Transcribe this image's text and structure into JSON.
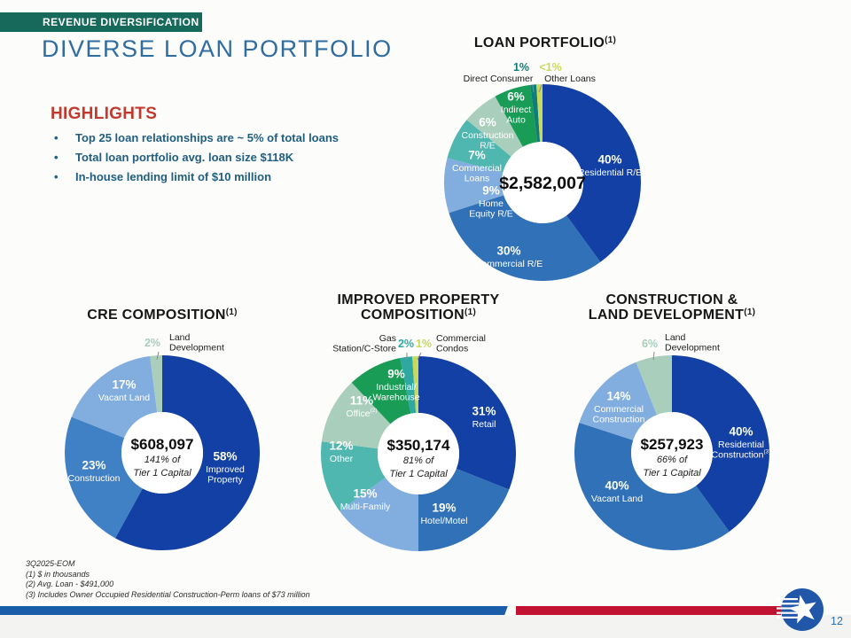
{
  "slide": {
    "banner": "REVENUE DIVERSIFICATION",
    "title": "DIVERSE LOAN PORTFOLIO",
    "page_number": "12",
    "footnotes": [
      "3Q2025-EOM",
      "(1) $ in thousands",
      "(2) Avg. Loan - $491,000",
      "(3) Includes Owner Occupied Residential Construction-Perm loans of $73 million"
    ]
  },
  "highlights": {
    "heading": "HIGHLIGHTS",
    "bullets": [
      "Top 25 loan relationships are ~ 5% of total loans",
      "Total loan portfolio avg. loan size $118K",
      "In-house lending limit of $10 million"
    ]
  },
  "colors": {
    "banner_green": "#17695B",
    "title_blue": "#2F6CA0",
    "highlight_red": "#C23A2E",
    "bullet_blue": "#1F5E80",
    "bar_blue": "#1A5DA8",
    "bar_red": "#C21231",
    "logo_blue": "#2057A8",
    "page_blue": "#2E6DA8",
    "footnote_gray": "#2B2B2B"
  },
  "chart_data": [
    {
      "type": "pie",
      "title_lines": [
        "LOAN PORTFOLIO"
      ],
      "title_sup": "(1)",
      "center_value": "$2,582,007",
      "center_sub_lines": [],
      "slices": [
        {
          "name": "Residential R/E",
          "pct": "40%",
          "value": 40,
          "color": "#1240A4",
          "name_lines": [
            "Residential R/E"
          ]
        },
        {
          "name": "Commercial R/E",
          "pct": "30%",
          "value": 30,
          "color": "#3071B8",
          "name_lines": [
            "Commercial R/E"
          ]
        },
        {
          "name": "Home Equity R/E",
          "pct": "9%",
          "value": 9,
          "color": "#81AEDF",
          "name_lines": [
            "Home",
            "Equity R/E"
          ]
        },
        {
          "name": "Commercial Loans",
          "pct": "7%",
          "value": 7,
          "color": "#4FB6B0",
          "name_lines": [
            "Commercial",
            "Loans"
          ]
        },
        {
          "name": "Construction R/E",
          "pct": "6%",
          "value": 6,
          "color": "#A9CFBC",
          "name_lines": [
            "Construction",
            "R/E"
          ]
        },
        {
          "name": "Indirect Auto",
          "pct": "6%",
          "value": 6,
          "color": "#199C55",
          "name_lines": [
            "Indirect",
            "Auto"
          ]
        },
        {
          "name": "Direct Consumer",
          "pct": "1%",
          "value": 1,
          "color": "#0E7E7A",
          "name_lines": [
            "Direct Consumer"
          ],
          "outside": true
        },
        {
          "name": "Other Loans",
          "pct": "<1%",
          "value": 1,
          "color": "#C9D95E",
          "name_lines": [
            "Other Loans"
          ],
          "outside": true
        }
      ]
    },
    {
      "type": "pie",
      "title_lines": [
        "CRE COMPOSITION"
      ],
      "title_sup": "(1)",
      "center_value": "$608,097",
      "center_sub_lines": [
        "141% of",
        "Tier 1 Capital"
      ],
      "slices": [
        {
          "name": "Improved Property",
          "pct": "58%",
          "value": 58,
          "color": "#1240A4",
          "name_lines": [
            "Improved",
            "Property"
          ]
        },
        {
          "name": "Construction",
          "pct": "23%",
          "value": 23,
          "color": "#4080C4",
          "name_lines": [
            "Construction"
          ]
        },
        {
          "name": "Vacant Land",
          "pct": "17%",
          "value": 17,
          "color": "#81AEDF",
          "name_lines": [
            "Vacant Land"
          ]
        },
        {
          "name": "Land Development",
          "pct": "2%",
          "value": 2,
          "color": "#A9CFBC",
          "name_lines": [
            "Land",
            "Development"
          ],
          "outside": true
        }
      ]
    },
    {
      "type": "pie",
      "title_lines": [
        "IMPROVED PROPERTY",
        "COMPOSITION"
      ],
      "title_sup": "(1)",
      "center_value": "$350,174",
      "center_sub_lines": [
        "81% of",
        "Tier 1 Capital"
      ],
      "slices": [
        {
          "name": "Retail",
          "pct": "31%",
          "value": 31,
          "color": "#1240A4",
          "name_lines": [
            "Retail"
          ]
        },
        {
          "name": "Hotel/Motel",
          "pct": "19%",
          "value": 19,
          "color": "#3071B8",
          "name_lines": [
            "Hotel/Motel"
          ]
        },
        {
          "name": "Multi-Family",
          "pct": "15%",
          "value": 15,
          "color": "#81AEDF",
          "name_lines": [
            "Multi-Family"
          ]
        },
        {
          "name": "Other",
          "pct": "12%",
          "value": 12,
          "color": "#4FB6B0",
          "name_lines": [
            "Other"
          ]
        },
        {
          "name": "Office",
          "pct": "11%",
          "value": 11,
          "color": "#A9CFBC",
          "name_lines": [
            "Office"
          ],
          "name_sup": "(2)"
        },
        {
          "name": "Industrial/Warehouse",
          "pct": "9%",
          "value": 9,
          "color": "#199C55",
          "name_lines": [
            "Industrial/",
            "Warehouse"
          ]
        },
        {
          "name": "Gas Station/C-Store",
          "pct": "2%",
          "value": 2,
          "color": "#2FA8A2",
          "name_lines": [
            "Gas",
            "Station/C-Store"
          ],
          "outside": true
        },
        {
          "name": "Commercial Condos",
          "pct": "1%",
          "value": 1,
          "color": "#C9D95E",
          "name_lines": [
            "Commercial",
            "Condos"
          ],
          "outside": true
        }
      ]
    },
    {
      "type": "pie",
      "title_lines": [
        "CONSTRUCTION &",
        "LAND DEVELOPMENT"
      ],
      "title_sup": "(1)",
      "center_value": "$257,923",
      "center_sub_lines": [
        "66% of",
        "Tier 1 Capital"
      ],
      "slices": [
        {
          "name": "Residential Construction",
          "pct": "40%",
          "value": 40,
          "color": "#1240A4",
          "name_lines": [
            "Residential",
            "Construction"
          ],
          "name_sup": "(3)"
        },
        {
          "name": "Vacant Land",
          "pct": "40%",
          "value": 40,
          "color": "#3071B8",
          "name_lines": [
            "Vacant Land"
          ]
        },
        {
          "name": "Commercial Construction",
          "pct": "14%",
          "value": 14,
          "color": "#81AEDF",
          "name_lines": [
            "Commercial",
            "Construction"
          ]
        },
        {
          "name": "Land Development",
          "pct": "6%",
          "value": 6,
          "color": "#A9CFBC",
          "name_lines": [
            "Land",
            "Development"
          ],
          "outside": true
        }
      ]
    }
  ]
}
